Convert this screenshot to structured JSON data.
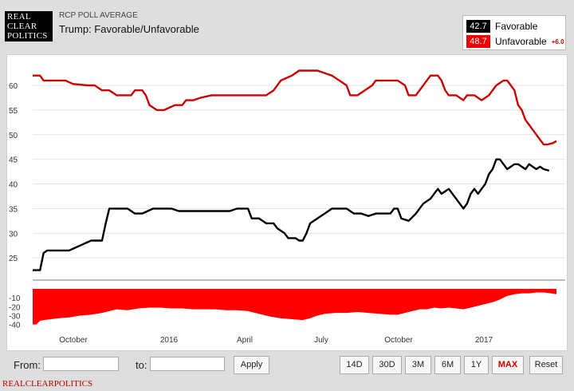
{
  "header": {
    "logo_lines": [
      "REAL",
      "CLEAR",
      "POLITICS"
    ],
    "kicker": "RCP POLL AVERAGE",
    "title": "Trump: Favorable/Unfavorable"
  },
  "legend": {
    "favorable": {
      "value": "42.7",
      "label": "Favorable",
      "color": "#000000"
    },
    "unfavorable": {
      "value": "48.7",
      "label": "Unfavorable",
      "color": "#e00000"
    },
    "spread": "+6.0"
  },
  "controls": {
    "from_label": "From:",
    "to_label": "to:",
    "apply_label": "Apply",
    "ranges": [
      "14D",
      "30D",
      "3M",
      "6M",
      "1Y",
      "MAX"
    ],
    "active_range": "MAX",
    "reset_label": "Reset"
  },
  "footer": "REALCLEARPOLITICS",
  "chart_data": [
    {
      "type": "line",
      "x_labels": [
        "October",
        "2016",
        "April",
        "July",
        "October",
        "2017"
      ],
      "ylim": [
        20,
        66
      ],
      "yticks": [
        25,
        30,
        35,
        40,
        45,
        50,
        55,
        60
      ],
      "grid": true,
      "series": [
        {
          "name": "Unfavorable",
          "color": "#cc0000",
          "points": [
            [
              0,
              62
            ],
            [
              4,
              62
            ],
            [
              6,
              61
            ],
            [
              12,
              61
            ],
            [
              18,
              61
            ],
            [
              22,
              60.3
            ],
            [
              30,
              60
            ],
            [
              34,
              60
            ],
            [
              38,
              59
            ],
            [
              42,
              59
            ],
            [
              46,
              58
            ],
            [
              50,
              58
            ],
            [
              54,
              58
            ],
            [
              56,
              59
            ],
            [
              60,
              59
            ],
            [
              62,
              58
            ],
            [
              64,
              56
            ],
            [
              68,
              55
            ],
            [
              72,
              55
            ],
            [
              78,
              56
            ],
            [
              82,
              56
            ],
            [
              84,
              57
            ],
            [
              88,
              57
            ],
            [
              92,
              57.5
            ],
            [
              98,
              58
            ],
            [
              104,
              58
            ],
            [
              110,
              58
            ],
            [
              116,
              58
            ],
            [
              120,
              58
            ],
            [
              124,
              58
            ],
            [
              128,
              58
            ],
            [
              132,
              59
            ],
            [
              136,
              61
            ],
            [
              142,
              62
            ],
            [
              146,
              63
            ],
            [
              150,
              63
            ],
            [
              156,
              63
            ],
            [
              160,
              62.5
            ],
            [
              164,
              62
            ],
            [
              168,
              61
            ],
            [
              172,
              60
            ],
            [
              174,
              58
            ],
            [
              178,
              58
            ],
            [
              182,
              59
            ],
            [
              186,
              60
            ],
            [
              188,
              61
            ],
            [
              190,
              61
            ],
            [
              196,
              61
            ],
            [
              200,
              61
            ],
            [
              204,
              60
            ],
            [
              206,
              58
            ],
            [
              210,
              58
            ],
            [
              214,
              60
            ],
            [
              218,
              62
            ],
            [
              222,
              62
            ],
            [
              224,
              61
            ],
            [
              226,
              59
            ],
            [
              228,
              58
            ],
            [
              232,
              58
            ],
            [
              236,
              57
            ],
            [
              238,
              58
            ],
            [
              242,
              58
            ],
            [
              246,
              57
            ],
            [
              250,
              58
            ],
            [
              254,
              60
            ],
            [
              258,
              61
            ],
            [
              260,
              61
            ],
            [
              262,
              60
            ],
            [
              264,
              59
            ],
            [
              266,
              56
            ],
            [
              268,
              55
            ],
            [
              270,
              53
            ],
            [
              272,
              52
            ],
            [
              274,
              51
            ],
            [
              276,
              50
            ],
            [
              278,
              49
            ],
            [
              280,
              48
            ],
            [
              282,
              48
            ],
            [
              285,
              48.3
            ],
            [
              287,
              48.7
            ]
          ]
        },
        {
          "name": "Favorable",
          "color": "#000000",
          "points": [
            [
              0,
              22.5
            ],
            [
              4,
              22.5
            ],
            [
              6,
              26
            ],
            [
              8,
              26.5
            ],
            [
              12,
              26.5
            ],
            [
              20,
              26.5
            ],
            [
              26,
              27.5
            ],
            [
              32,
              28.5
            ],
            [
              38,
              28.5
            ],
            [
              40,
              32
            ],
            [
              42,
              35
            ],
            [
              46,
              35
            ],
            [
              52,
              35
            ],
            [
              56,
              34
            ],
            [
              60,
              34
            ],
            [
              66,
              35
            ],
            [
              72,
              35
            ],
            [
              76,
              35
            ],
            [
              80,
              34.5
            ],
            [
              84,
              34.5
            ],
            [
              90,
              34.5
            ],
            [
              96,
              34.5
            ],
            [
              102,
              34.5
            ],
            [
              108,
              34.5
            ],
            [
              112,
              35
            ],
            [
              118,
              35
            ],
            [
              120,
              33
            ],
            [
              124,
              33
            ],
            [
              128,
              32
            ],
            [
              132,
              32
            ],
            [
              134,
              31
            ],
            [
              138,
              30
            ],
            [
              140,
              29
            ],
            [
              144,
              29
            ],
            [
              146,
              28.5
            ],
            [
              148,
              28.5
            ],
            [
              150,
              30
            ],
            [
              152,
              32
            ],
            [
              156,
              33
            ],
            [
              160,
              34
            ],
            [
              164,
              35
            ],
            [
              170,
              35
            ],
            [
              172,
              35
            ],
            [
              176,
              34
            ],
            [
              180,
              34
            ],
            [
              184,
              33.5
            ],
            [
              188,
              34
            ],
            [
              192,
              34
            ],
            [
              196,
              34
            ],
            [
              198,
              35
            ],
            [
              200,
              35
            ],
            [
              202,
              33
            ],
            [
              206,
              32.5
            ],
            [
              210,
              34
            ],
            [
              214,
              36
            ],
            [
              218,
              37
            ],
            [
              222,
              39
            ],
            [
              224,
              38
            ],
            [
              228,
              39
            ],
            [
              232,
              37
            ],
            [
              234,
              36
            ],
            [
              236,
              35
            ],
            [
              238,
              36
            ],
            [
              240,
              38
            ],
            [
              242,
              39
            ],
            [
              244,
              38
            ],
            [
              246,
              39
            ],
            [
              248,
              40
            ],
            [
              250,
              42
            ],
            [
              252,
              43
            ],
            [
              254,
              45
            ],
            [
              256,
              45
            ],
            [
              258,
              44
            ],
            [
              260,
              43
            ],
            [
              264,
              44
            ],
            [
              266,
              44
            ],
            [
              268,
              43.5
            ],
            [
              270,
              43
            ],
            [
              272,
              44
            ],
            [
              274,
              43.5
            ],
            [
              276,
              43
            ],
            [
              278,
              43.5
            ],
            [
              280,
              43
            ],
            [
              283,
              42.7
            ]
          ]
        }
      ]
    },
    {
      "type": "area",
      "name": "Spread",
      "color": "#ff0000",
      "ylim": [
        -43,
        0
      ],
      "yticks": [
        -10,
        -20,
        -30,
        -40
      ],
      "points": [
        [
          0,
          -40
        ],
        [
          2,
          -40
        ],
        [
          4,
          -36
        ],
        [
          6,
          -35
        ],
        [
          10,
          -34
        ],
        [
          14,
          -33
        ],
        [
          20,
          -32
        ],
        [
          26,
          -30
        ],
        [
          32,
          -29
        ],
        [
          38,
          -27
        ],
        [
          42,
          -25
        ],
        [
          46,
          -23
        ],
        [
          52,
          -24
        ],
        [
          58,
          -22
        ],
        [
          64,
          -21
        ],
        [
          70,
          -21
        ],
        [
          76,
          -22
        ],
        [
          82,
          -22
        ],
        [
          88,
          -23
        ],
        [
          94,
          -23
        ],
        [
          100,
          -23
        ],
        [
          106,
          -24
        ],
        [
          112,
          -24
        ],
        [
          118,
          -25
        ],
        [
          124,
          -28
        ],
        [
          130,
          -31
        ],
        [
          136,
          -33
        ],
        [
          142,
          -34
        ],
        [
          148,
          -35
        ],
        [
          152,
          -33
        ],
        [
          156,
          -30
        ],
        [
          160,
          -28
        ],
        [
          166,
          -27
        ],
        [
          172,
          -27
        ],
        [
          178,
          -26
        ],
        [
          184,
          -27
        ],
        [
          190,
          -28
        ],
        [
          196,
          -29
        ],
        [
          200,
          -29
        ],
        [
          204,
          -27
        ],
        [
          208,
          -25
        ],
        [
          212,
          -23
        ],
        [
          216,
          -23
        ],
        [
          220,
          -21
        ],
        [
          224,
          -22
        ],
        [
          228,
          -21
        ],
        [
          232,
          -22
        ],
        [
          236,
          -23
        ],
        [
          240,
          -21
        ],
        [
          244,
          -19
        ],
        [
          248,
          -17
        ],
        [
          252,
          -15
        ],
        [
          256,
          -12
        ],
        [
          260,
          -8
        ],
        [
          264,
          -6
        ],
        [
          268,
          -5
        ],
        [
          272,
          -5
        ],
        [
          276,
          -4
        ],
        [
          280,
          -4
        ],
        [
          284,
          -5
        ],
        [
          287,
          -6
        ]
      ]
    }
  ]
}
